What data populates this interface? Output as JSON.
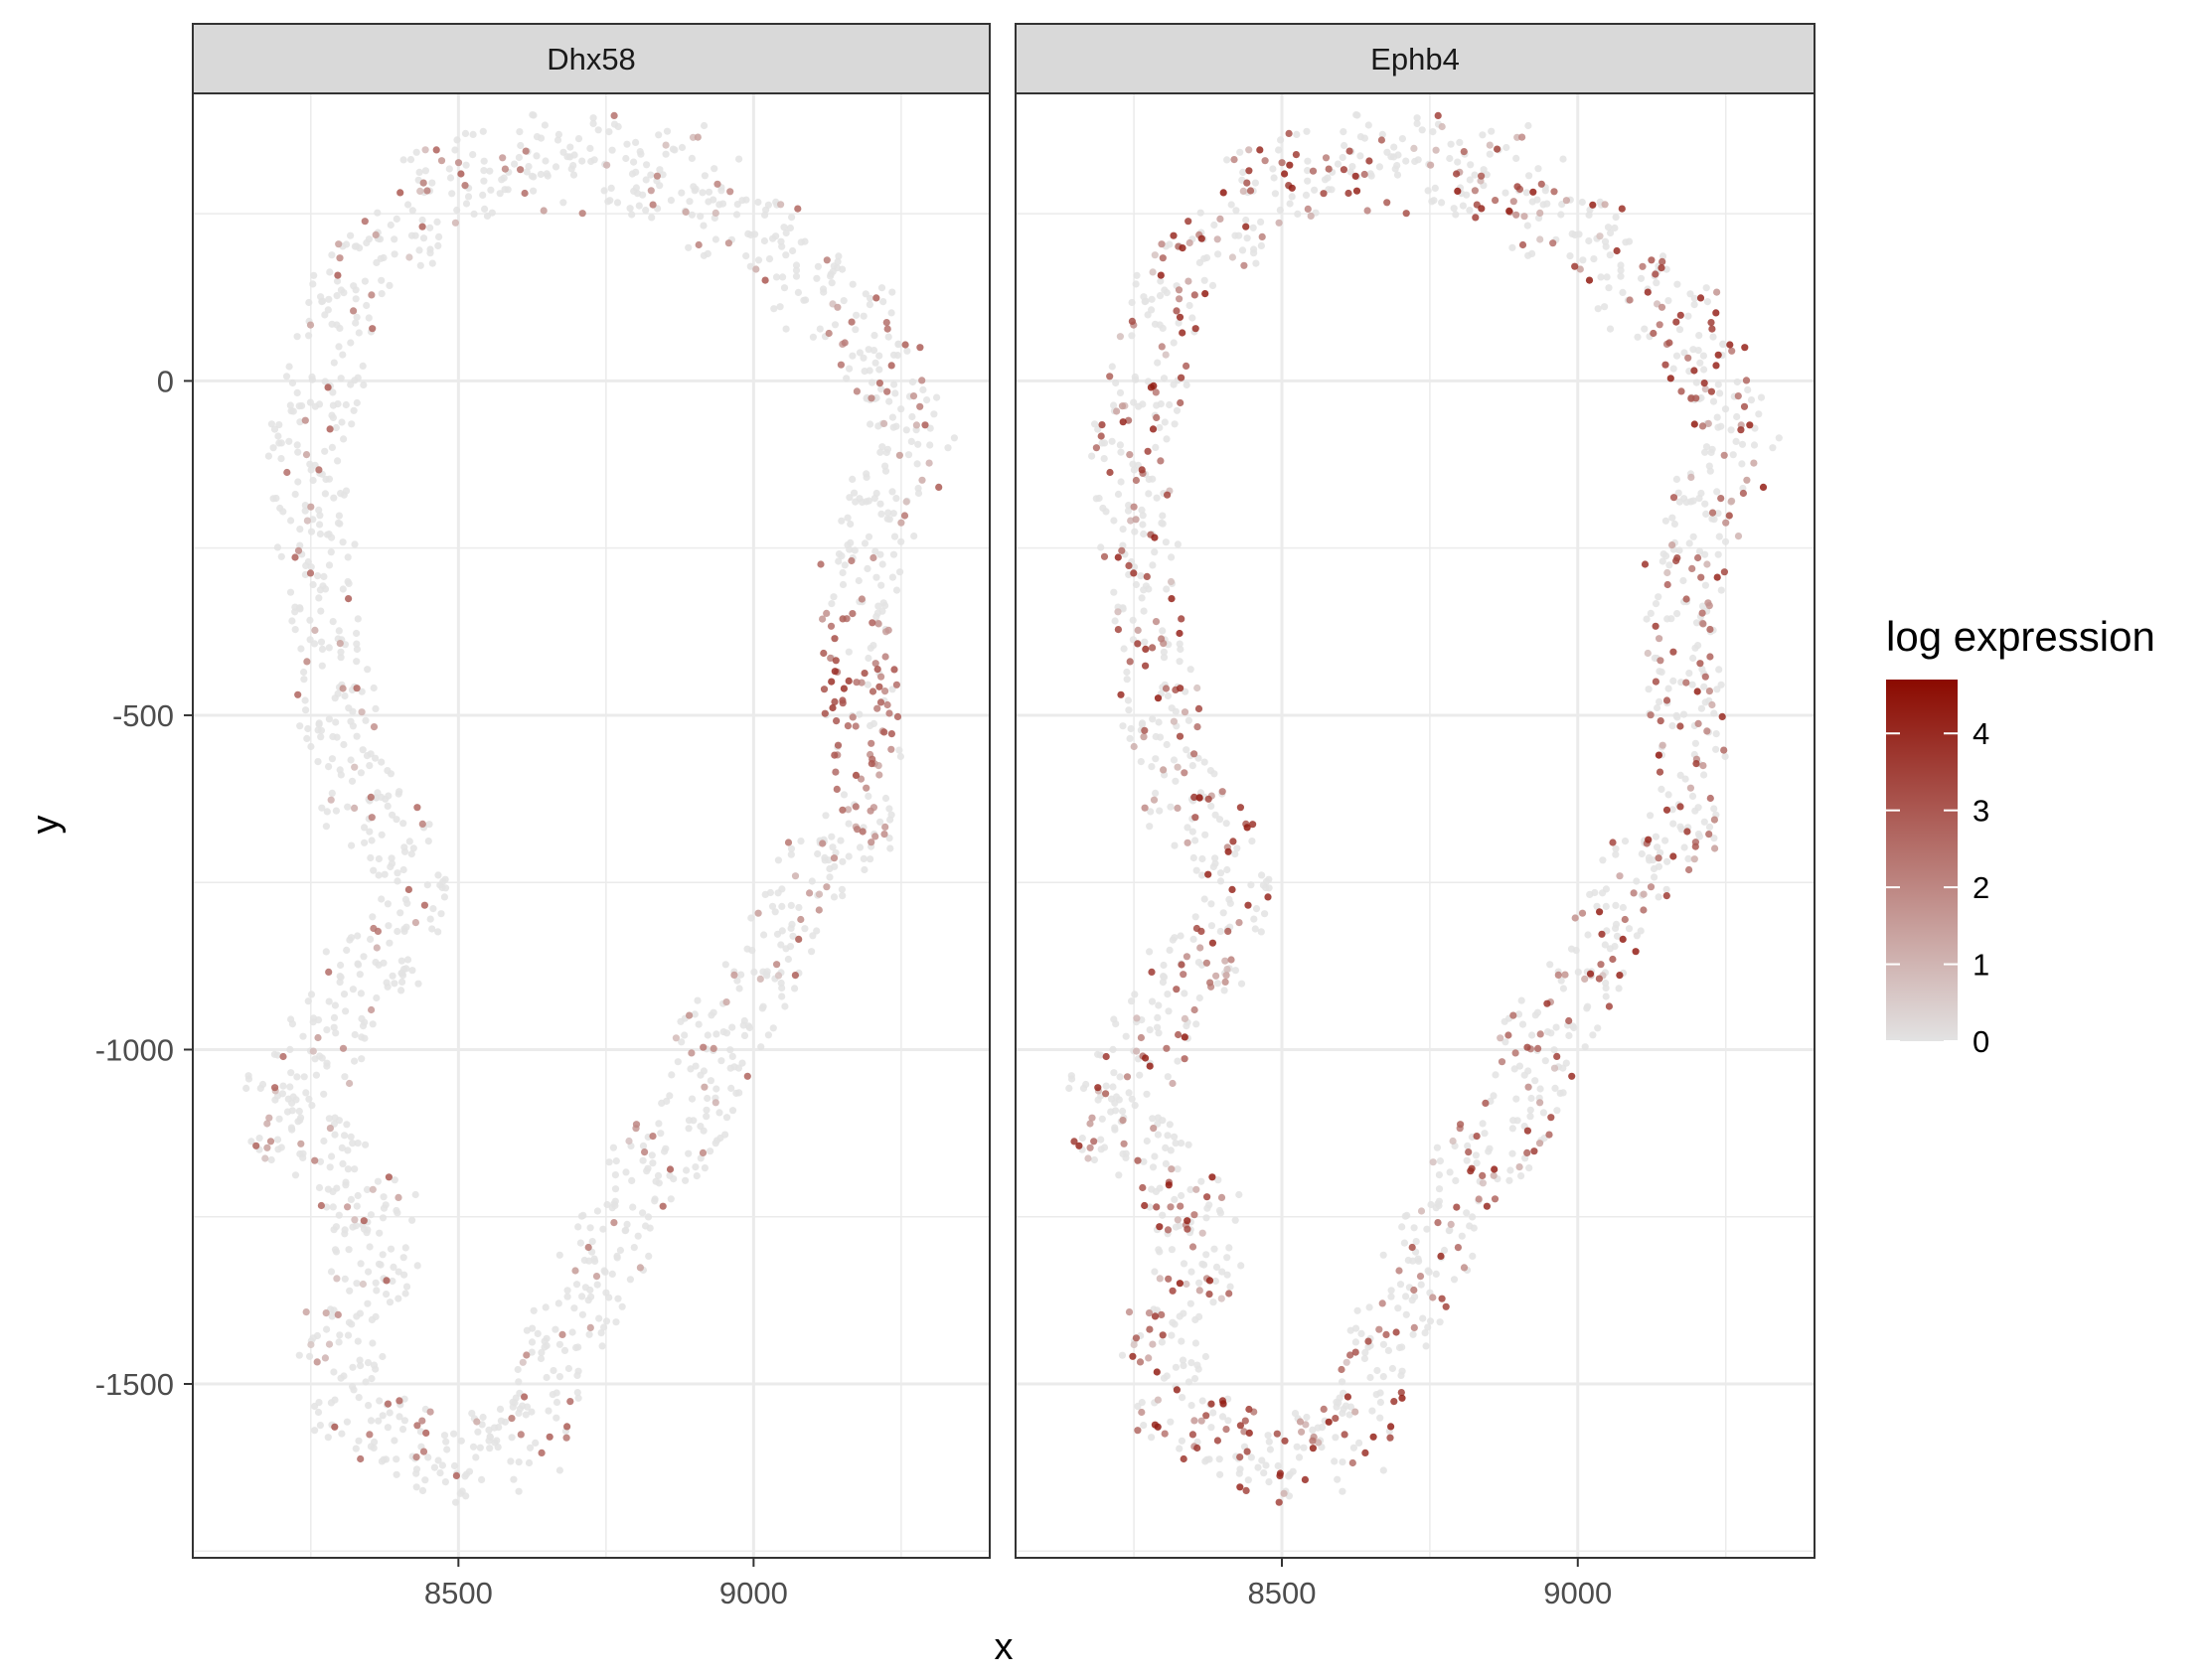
{
  "chart_data": {
    "type": "scatter",
    "facets": [
      "Dhx58",
      "Ephb4"
    ],
    "xlabel": "x",
    "ylabel": "y",
    "xlim": [
      8050,
      9400
    ],
    "ylim": [
      -1760,
      430
    ],
    "x_ticks": [
      8500,
      9000
    ],
    "y_ticks": [
      0,
      -500,
      -1000,
      -1500
    ],
    "x_tick_labels": [
      "8500",
      "9000"
    ],
    "y_tick_labels": [
      "0",
      "-500",
      "-1000",
      "-1500"
    ],
    "grid": true,
    "legend": {
      "title": "log expression",
      "position": "right",
      "min": 0,
      "max": 4.7,
      "breaks": [
        0,
        1,
        2,
        3,
        4
      ],
      "break_labels": [
        "0",
        "1",
        "2",
        "3",
        "4"
      ],
      "low_color": "#e3e3e3",
      "high_color": "#8b0a00"
    },
    "tissue_outline": [
      [
        8590,
        335
      ],
      [
        8700,
        315
      ],
      [
        8800,
        325
      ],
      [
        8900,
        305
      ],
      [
        8985,
        225
      ],
      [
        9080,
        160
      ],
      [
        9180,
        75
      ],
      [
        9260,
        0
      ],
      [
        9270,
        -110
      ],
      [
        9220,
        -240
      ],
      [
        9160,
        -330
      ],
      [
        9160,
        -470
      ],
      [
        9200,
        -590
      ],
      [
        9140,
        -700
      ],
      [
        9060,
        -800
      ],
      [
        9000,
        -905
      ],
      [
        8930,
        -1025
      ],
      [
        8855,
        -1140
      ],
      [
        8770,
        -1255
      ],
      [
        8720,
        -1350
      ],
      [
        8680,
        -1450
      ],
      [
        8630,
        -1550
      ],
      [
        8560,
        -1620
      ],
      [
        8470,
        -1620
      ],
      [
        8370,
        -1570
      ],
      [
        8300,
        -1490
      ],
      [
        8320,
        -1380
      ],
      [
        8390,
        -1290
      ],
      [
        8340,
        -1210
      ],
      [
        8260,
        -1160
      ],
      [
        8190,
        -1090
      ],
      [
        8250,
        -1000
      ],
      [
        8330,
        -910
      ],
      [
        8400,
        -820
      ],
      [
        8410,
        -720
      ],
      [
        8345,
        -640
      ],
      [
        8300,
        -540
      ],
      [
        8295,
        -420
      ],
      [
        8250,
        -320
      ],
      [
        8240,
        -200
      ],
      [
        8240,
        -70
      ],
      [
        8280,
        50
      ],
      [
        8340,
        150
      ],
      [
        8420,
        245
      ],
      [
        8500,
        310
      ]
    ],
    "series": [
      {
        "name": "Dhx58",
        "hotspots": [
          {
            "x": 9150,
            "y": -470,
            "radius": 140,
            "level": 3.4
          },
          {
            "x": 9180,
            "y": -580,
            "radius": 110,
            "level": 2.6
          }
        ],
        "background_expression_rate": 0.13,
        "background_expression_max": 2.3
      },
      {
        "name": "Ephb4",
        "hotspots": [],
        "background_expression_rate": 0.34,
        "background_expression_max": 3.9
      }
    ]
  }
}
